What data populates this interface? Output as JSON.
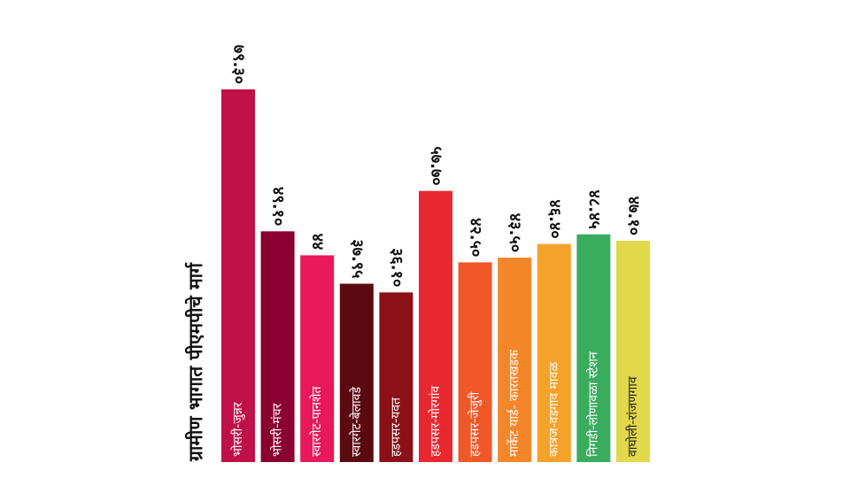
{
  "chart_data": {
    "type": "bar",
    "title": "ग्रामीण भागात पीएमपीचे मार्ग",
    "categories": [
      "भोसरी-जुन्नर",
      "भोसरी-मंचर",
      "स्वारगेट-पानशेत",
      "स्वारगेट-बेलावडे",
      "हडपसर-यवत",
      "हडपसर-मोरगांव",
      "हडपसर-जेजुरी",
      "मार्केट यार्ड- कारतखडक",
      "कात्रज-वडगाव मावळ",
      "निगडी-लोणावळा स्टेशन",
      "वाघोली-रांजणगाव"
    ],
    "values": [
      79.3,
      49.1,
      44,
      37.95,
      36.1,
      57.7,
      42.5,
      43.5,
      46.4,
      48.45,
      47.1
    ],
    "value_labels": [
      "७९.३०",
      "४९.१०",
      "४४",
      "३७.९५",
      "३६.१०",
      "५७.७०",
      "४२.५०",
      "४३.५०",
      "४६.४०",
      "४८.४५",
      "४७.१०"
    ],
    "colors": [
      "#c0104a",
      "#8a0030",
      "#e8185a",
      "#5c0a12",
      "#8b1018",
      "#e8282e",
      "#f0582a",
      "#f4862a",
      "#f4a22a",
      "#3aac5e",
      "#e2d84a"
    ]
  }
}
